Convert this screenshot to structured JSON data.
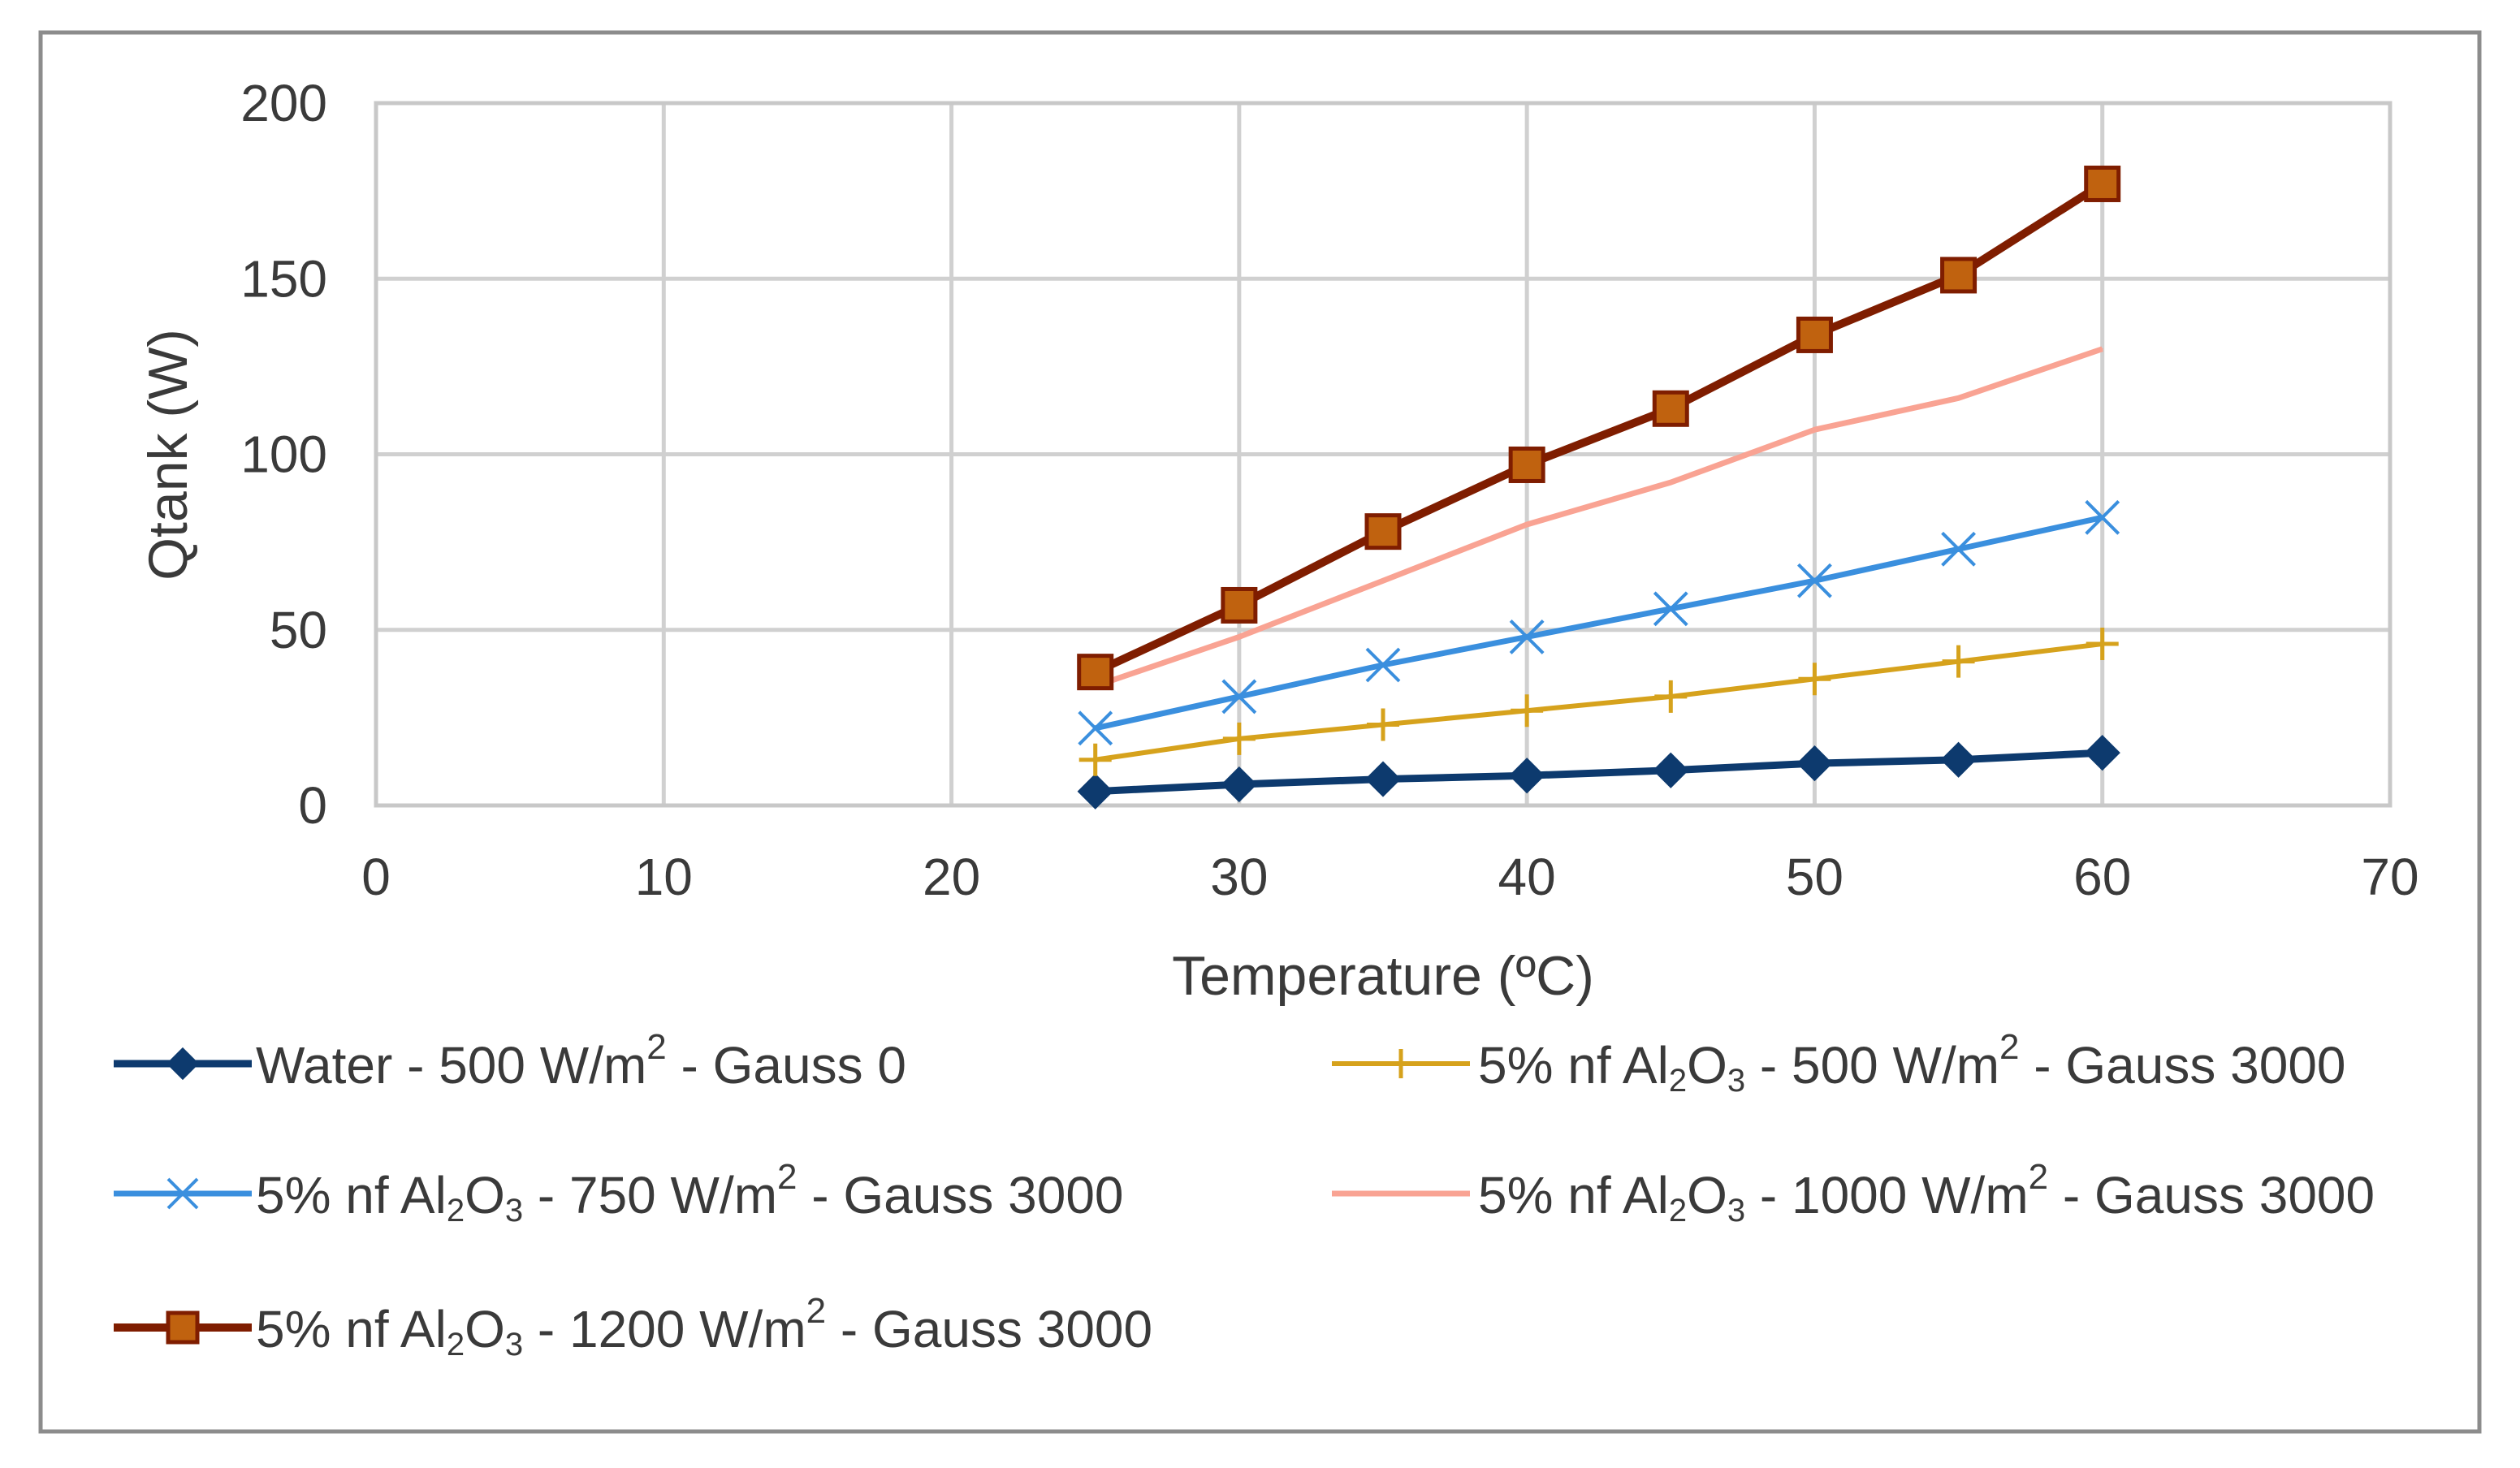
{
  "chart_data": {
    "type": "line",
    "title": "",
    "xlabel": "Temperature (ºC)",
    "ylabel": "Qtank (W)",
    "xlim": [
      0,
      70
    ],
    "ylim": [
      0,
      200
    ],
    "xticks": [
      0,
      10,
      20,
      30,
      40,
      50,
      60,
      70
    ],
    "yticks": [
      0,
      50,
      100,
      150,
      200
    ],
    "grid": true,
    "legend_position": "bottom",
    "series": [
      {
        "name": "Water - 500 W/m2 - Gauss 0",
        "label_parts": {
          "pre": "Water - 500 W/m",
          "sup": "2",
          "post": " - Gauss 0"
        },
        "color": "#0d3a6e",
        "marker": "diamond",
        "x": [
          25,
          30,
          35,
          40,
          45,
          50,
          55,
          60
        ],
        "values": [
          4,
          6,
          7.5,
          8.5,
          10,
          12,
          13,
          15
        ]
      },
      {
        "name": "5% nf Al2O3 - 500 W/m2 - Gauss 3000",
        "label_parts": {
          "pre": "5% nf Al",
          "sub1": "2",
          "mid": "O",
          "sub2": "3",
          "post1": " - 500 W/m",
          "sup": "2",
          "post2": " - Gauss 3000"
        },
        "color": "#d6a21c",
        "marker": "plus",
        "x": [
          25,
          30,
          35,
          40,
          45,
          50,
          55,
          60
        ],
        "values": [
          13,
          19,
          23,
          27,
          31,
          36,
          41,
          46
        ]
      },
      {
        "name": "5% nf Al2O3 - 750 W/m2 - Gauss 3000",
        "label_parts": {
          "pre": "5% nf Al",
          "sub1": "2",
          "mid": "O",
          "sub2": "3",
          "post1": " - 750 W/m",
          "sup": "2",
          "post2": " - Gauss 3000"
        },
        "color": "#3a8fde",
        "marker": "x",
        "x": [
          25,
          30,
          35,
          40,
          45,
          50,
          55,
          60
        ],
        "values": [
          22,
          31,
          40,
          48,
          56,
          64,
          73,
          82
        ]
      },
      {
        "name": "5% nf Al2O3 - 1000 W/m2 - Gauss 3000",
        "label_parts": {
          "pre": "5% nf Al",
          "sub1": "2",
          "mid": "O",
          "sub2": "3",
          "post1": " - 1000 W/m",
          "sup": "2",
          "post2": " - Gauss 3000"
        },
        "color": "#f9a393",
        "marker": "none",
        "x": [
          25,
          30,
          35,
          40,
          45,
          50,
          55,
          60
        ],
        "values": [
          34,
          48,
          64,
          80,
          92,
          107,
          116,
          130
        ]
      },
      {
        "name": "5% nf Al2O3 - 1200 W/m2 - Gauss 3000",
        "label_parts": {
          "pre": "5% nf Al",
          "sub1": "2",
          "mid": "O",
          "sub2": "3",
          "post1": " - 1200 W/m",
          "sup": "2",
          "post2": " - Gauss 3000"
        },
        "color": "#7f1d00",
        "marker": "square",
        "x": [
          25,
          30,
          35,
          40,
          45,
          50,
          55,
          60
        ],
        "values": [
          38,
          57,
          78,
          97,
          113,
          134,
          151,
          177
        ]
      }
    ]
  }
}
